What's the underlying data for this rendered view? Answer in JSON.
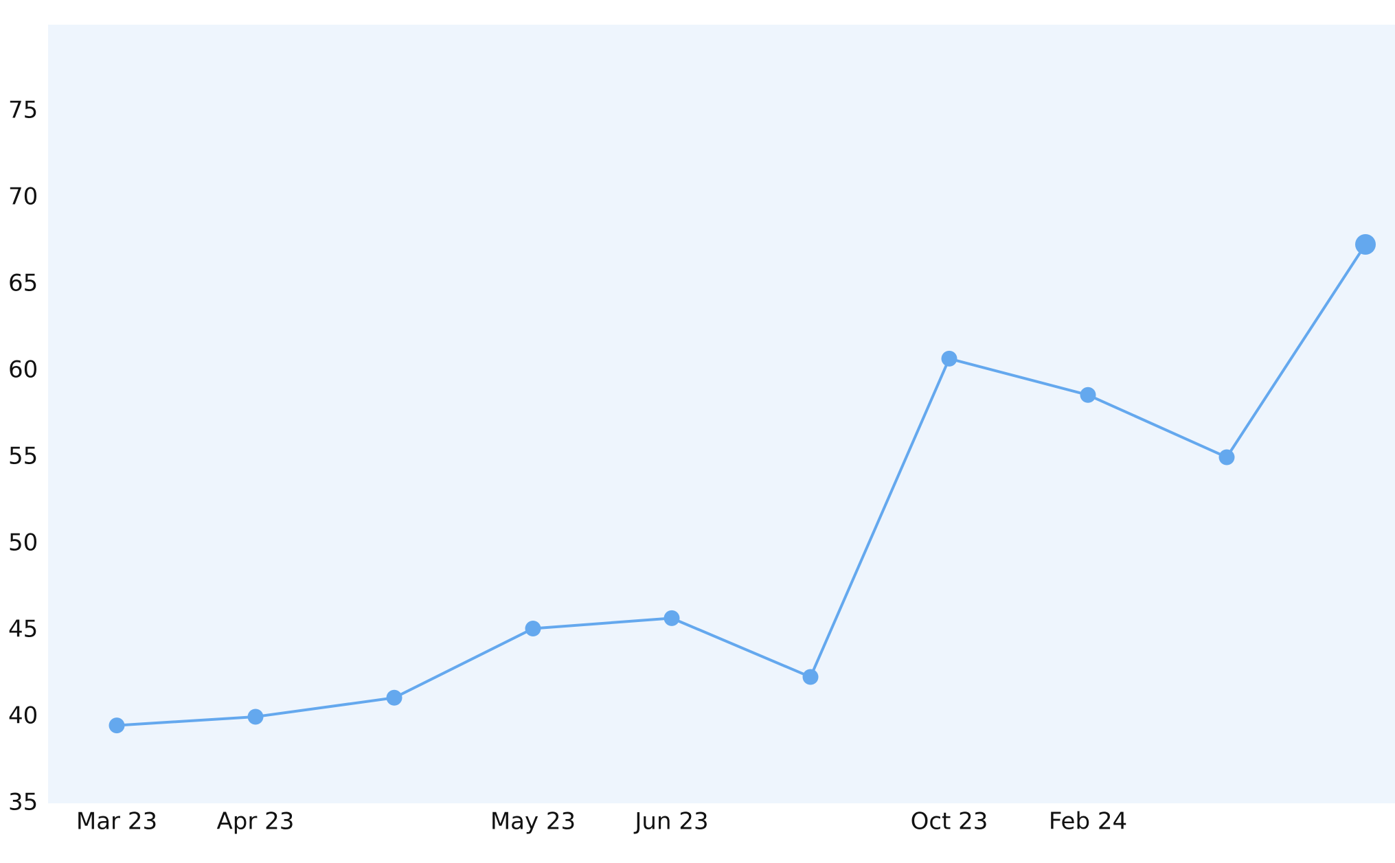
{
  "chart_data": {
    "type": "line",
    "categories": [
      "Mar 23",
      "Apr 23",
      null,
      "May 23",
      "Jun 23",
      null,
      "Oct 23",
      "Feb 24",
      null,
      null
    ],
    "values": [
      39.5,
      40.0,
      41.1,
      45.1,
      45.7,
      42.3,
      60.7,
      58.6,
      55.0,
      67.3
    ],
    "color": "#64a8ee",
    "ylim": [
      35,
      80
    ],
    "yticks": [
      35,
      40,
      45,
      50,
      55,
      60,
      65,
      70,
      75
    ],
    "grid": false
  }
}
